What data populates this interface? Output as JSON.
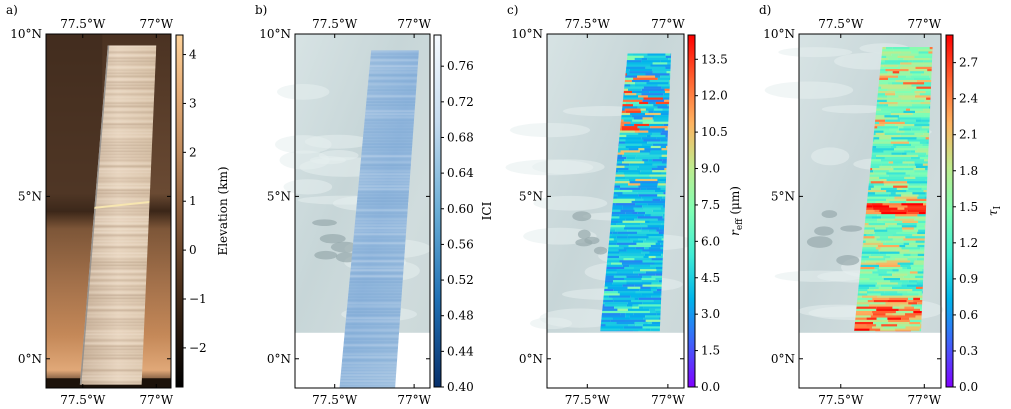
{
  "chart_data": [
    {
      "type": "heatmap",
      "panel_label": "a)",
      "x_ticks_top": [
        "77.5°W",
        "77°W"
      ],
      "x_ticks_bottom": [
        "77.5°W",
        "77°W"
      ],
      "y_ticks": [
        "10°N",
        "5°N",
        "0°N"
      ],
      "x_tick_values": [
        -77.5,
        -77.0
      ],
      "y_tick_values": [
        10,
        5,
        0
      ],
      "xlim": [
        -77.75,
        -76.9
      ],
      "ylim": [
        -0.9,
        10.0
      ],
      "colorbar": {
        "label": "Elevation (km)",
        "ticks": [
          "4",
          "3",
          "2",
          "1",
          "0",
          "−1",
          "−2"
        ],
        "tick_values": [
          4,
          3,
          2,
          1,
          0,
          -1,
          -2
        ],
        "range": [
          -2.8,
          4.4
        ],
        "colors": [
          "#000000",
          "#2a1a0e",
          "#5a3a22",
          "#8c5f3d",
          "#bf8a5c",
          "#e5ac76",
          "#fdd29a"
        ]
      }
    },
    {
      "type": "heatmap",
      "panel_label": "b)",
      "x_ticks_top": [
        "77.5°W",
        "77°W"
      ],
      "x_ticks_bottom": [
        "77.5°W",
        "77°W"
      ],
      "y_ticks": [
        "10°N",
        "5°N",
        "0°N"
      ],
      "x_tick_values": [
        -77.5,
        -77.0
      ],
      "y_tick_values": [
        10,
        5,
        0
      ],
      "xlim": [
        -77.75,
        -76.9
      ],
      "ylim": [
        -0.9,
        10.0
      ],
      "colorbar": {
        "label": "ICI",
        "ticks": [
          "0.76",
          "0.72",
          "0.68",
          "0.64",
          "0.60",
          "0.56",
          "0.52",
          "0.48",
          "0.44",
          "0.40"
        ],
        "tick_values": [
          0.76,
          0.72,
          0.68,
          0.64,
          0.6,
          0.56,
          0.52,
          0.48,
          0.44,
          0.4
        ],
        "range": [
          0.4,
          0.795
        ],
        "colors": [
          "#08306b",
          "#2171b5",
          "#6baed6",
          "#c6dbef",
          "#f7fbff"
        ]
      }
    },
    {
      "type": "heatmap",
      "panel_label": "c)",
      "x_ticks_top": [
        "77.5°W",
        "77°W"
      ],
      "x_ticks_bottom": [
        "77.5°W",
        "77°W"
      ],
      "y_ticks": [
        "10°N",
        "5°N",
        "0°N"
      ],
      "x_tick_values": [
        -77.5,
        -77.0
      ],
      "y_tick_values": [
        10,
        5,
        0
      ],
      "xlim": [
        -77.75,
        -76.9
      ],
      "ylim": [
        -0.9,
        10.0
      ],
      "colorbar": {
        "label": "r",
        "label_sub": "eff",
        "label_unit": " (μm)",
        "ticks": [
          "13.5",
          "12.0",
          "10.5",
          "9.0",
          "7.5",
          "6.0",
          "4.5",
          "3.0",
          "1.5",
          "0.0"
        ],
        "tick_values": [
          13.5,
          12.0,
          10.5,
          9.0,
          7.5,
          6.0,
          4.5,
          3.0,
          1.5,
          0.0
        ],
        "range": [
          0.0,
          14.5
        ],
        "colors": [
          "#8000ff",
          "#4062fa",
          "#00b5eb",
          "#40ecd4",
          "#80ffb4",
          "#c0eb8d",
          "#ffb360",
          "#ff6230",
          "#ff0000"
        ]
      }
    },
    {
      "type": "heatmap",
      "panel_label": "d)",
      "x_ticks_top": [
        "77.5°W",
        "77°W"
      ],
      "x_ticks_bottom": [
        "77.5°W",
        "77°W"
      ],
      "y_ticks": [
        "10°N",
        "5°N",
        "0°N"
      ],
      "x_tick_values": [
        -77.5,
        -77.0
      ],
      "y_tick_values": [
        10,
        5,
        0
      ],
      "xlim": [
        -77.75,
        -76.9
      ],
      "ylim": [
        -0.9,
        10.0
      ],
      "colorbar": {
        "label": "τ",
        "label_sub": "I",
        "ticks": [
          "2.7",
          "2.4",
          "2.1",
          "1.8",
          "1.5",
          "1.2",
          "0.9",
          "0.6",
          "0.3",
          "0.0"
        ],
        "tick_values": [
          2.7,
          2.4,
          2.1,
          1.8,
          1.5,
          1.2,
          0.9,
          0.6,
          0.3,
          0.0
        ],
        "range": [
          0.0,
          2.93
        ],
        "colors": [
          "#8000ff",
          "#4062fa",
          "#00b5eb",
          "#40ecd4",
          "#80ffb4",
          "#c0eb8d",
          "#ffb360",
          "#ff6230",
          "#ff0000"
        ]
      }
    }
  ]
}
